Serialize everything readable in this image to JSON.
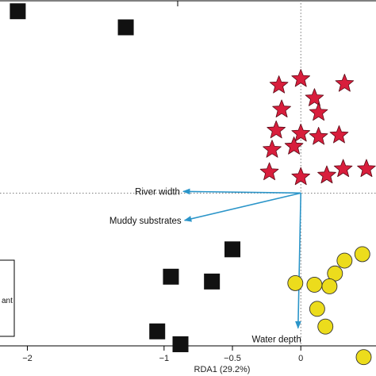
{
  "chart_data": {
    "type": "scatter",
    "xlabel": "RDA1 (29.2%)",
    "xlim": [
      -2.2,
      0.55
    ],
    "ylim": [
      -0.95,
      1.2
    ],
    "x_ticks": [
      {
        "value": -2,
        "label": "−2"
      },
      {
        "value": -1,
        "label": "−1"
      },
      {
        "value": -0.5,
        "label": "−0.5"
      },
      {
        "value": 0,
        "label": "0"
      }
    ],
    "reference_lines": {
      "x": 0,
      "y": 0,
      "style": "dotted"
    },
    "colors": {
      "squares": "#111111",
      "stars": "#d81e3c",
      "circles": "#ecdc1c",
      "arrows": "#2b95c9"
    },
    "series": [
      {
        "marker": "square",
        "points": [
          {
            "x": -2.07,
            "y": 1.13
          },
          {
            "x": -1.28,
            "y": 1.03
          },
          {
            "x": -0.5,
            "y": -0.35
          },
          {
            "x": -0.95,
            "y": -0.52
          },
          {
            "x": -0.65,
            "y": -0.55
          },
          {
            "x": -1.05,
            "y": -0.86
          },
          {
            "x": -0.88,
            "y": -0.94
          }
        ]
      },
      {
        "marker": "star",
        "points": [
          {
            "x": -0.16,
            "y": 0.67
          },
          {
            "x": 0.0,
            "y": 0.71
          },
          {
            "x": 0.32,
            "y": 0.68
          },
          {
            "x": 0.1,
            "y": 0.59
          },
          {
            "x": -0.14,
            "y": 0.52
          },
          {
            "x": 0.13,
            "y": 0.5
          },
          {
            "x": -0.18,
            "y": 0.39
          },
          {
            "x": 0.0,
            "y": 0.37
          },
          {
            "x": 0.13,
            "y": 0.35
          },
          {
            "x": 0.28,
            "y": 0.36
          },
          {
            "x": -0.21,
            "y": 0.27
          },
          {
            "x": -0.05,
            "y": 0.29
          },
          {
            "x": -0.23,
            "y": 0.13
          },
          {
            "x": 0.0,
            "y": 0.1
          },
          {
            "x": 0.19,
            "y": 0.11
          },
          {
            "x": 0.31,
            "y": 0.15
          },
          {
            "x": 0.48,
            "y": 0.15
          }
        ]
      },
      {
        "marker": "circle",
        "points": [
          {
            "x": 0.45,
            "y": -0.38
          },
          {
            "x": 0.32,
            "y": -0.42
          },
          {
            "x": 0.25,
            "y": -0.5
          },
          {
            "x": -0.04,
            "y": -0.56
          },
          {
            "x": 0.1,
            "y": -0.57
          },
          {
            "x": 0.21,
            "y": -0.58
          },
          {
            "x": 0.12,
            "y": -0.72
          },
          {
            "x": 0.18,
            "y": -0.83
          },
          {
            "x": 0.46,
            "y": -1.02
          }
        ]
      }
    ],
    "arrows": [
      {
        "label": "River width",
        "x": -0.86,
        "y": 0.01
      },
      {
        "label": "Muddy substrates",
        "x": -0.85,
        "y": -0.17
      },
      {
        "label": "Water depth",
        "x": -0.02,
        "y": -0.84
      }
    ],
    "legend_partial_text": "ant"
  }
}
